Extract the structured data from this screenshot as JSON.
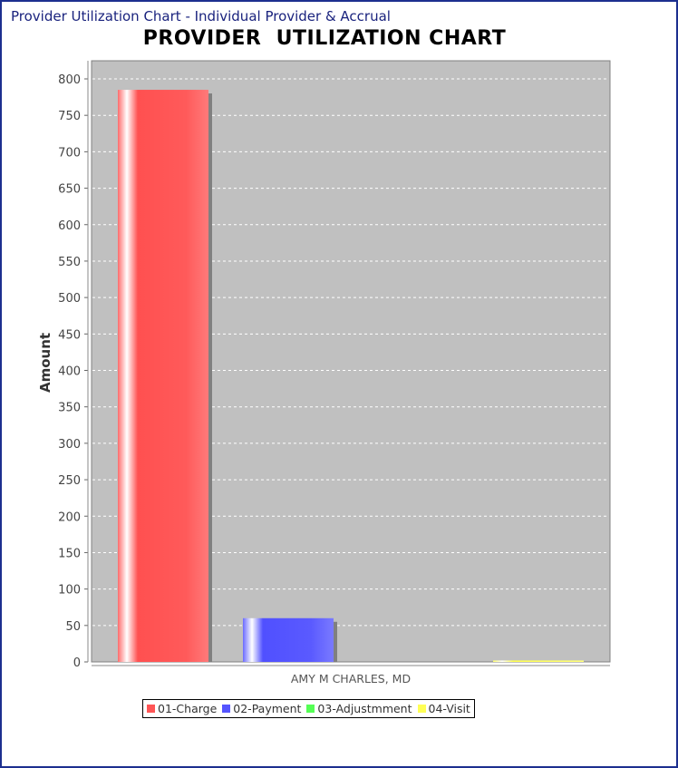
{
  "window": {
    "title": "Provider Utilization Chart - Individual Provider & Accrual"
  },
  "chart_data": {
    "type": "bar",
    "title": "PROVIDER  UTILIZATION CHART",
    "xlabel": "",
    "ylabel": "Amount",
    "ylim": [
      0,
      800
    ],
    "yticks": [
      0,
      50,
      100,
      150,
      200,
      250,
      300,
      350,
      400,
      450,
      500,
      550,
      600,
      650,
      700,
      750,
      800
    ],
    "categories": [
      "AMY M CHARLES, MD"
    ],
    "series": [
      {
        "name": "01-Charge",
        "color": "#ff5555",
        "values": [
          785
        ]
      },
      {
        "name": "02-Payment",
        "color": "#5555ff",
        "values": [
          60
        ]
      },
      {
        "name": "03-Adjustmment",
        "color": "#55ff55",
        "values": [
          0
        ]
      },
      {
        "name": "04-Visit",
        "color": "#ffff55",
        "values": [
          2
        ]
      }
    ],
    "grid": true,
    "legend": "bottom-left"
  }
}
